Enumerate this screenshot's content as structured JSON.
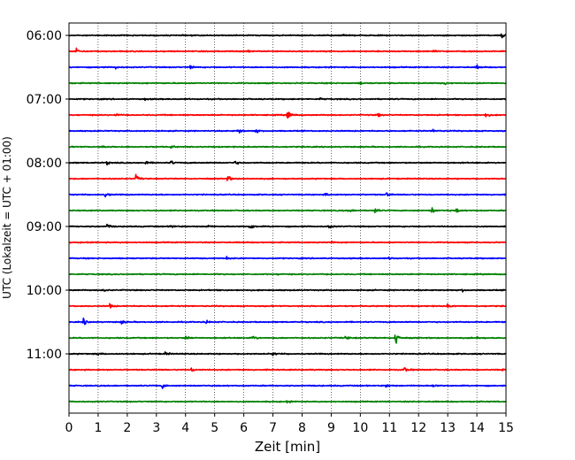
{
  "chart_data": {
    "type": "line",
    "title": "",
    "xlabel": "Zeit  [min]",
    "ylabel": "UTC (Lokalzeit = UTC + 01:00)",
    "xlim": [
      0,
      15
    ],
    "x_ticks": [
      "0",
      "1",
      "2",
      "3",
      "4",
      "5",
      "6",
      "7",
      "8",
      "9",
      "10",
      "11",
      "12",
      "13",
      "14",
      "15"
    ],
    "y_ticks": [
      "06:00",
      "07:00",
      "08:00",
      "09:00",
      "10:00",
      "11:00"
    ],
    "grid": "vertical dotted",
    "trace_interval_minutes": 15,
    "colors": [
      "#000000",
      "#ff0000",
      "#0000ff",
      "#008000"
    ],
    "series": [
      {
        "start": "06:00",
        "color": "#000000",
        "events": [
          {
            "t": 14.85,
            "amp": 0.55
          },
          {
            "t": 9.4,
            "amp": 0.2
          }
        ]
      },
      {
        "start": "06:15",
        "color": "#ff0000",
        "events": [
          {
            "t": 0.25,
            "amp": 0.55
          },
          {
            "t": 6.1,
            "amp": 0.25
          },
          {
            "t": 12.5,
            "amp": 0.25
          }
        ]
      },
      {
        "start": "06:30",
        "color": "#0000ff",
        "events": [
          {
            "t": 4.15,
            "amp": 0.35
          },
          {
            "t": 1.6,
            "amp": 0.25
          },
          {
            "t": 14.0,
            "amp": 0.35
          }
        ]
      },
      {
        "start": "06:45",
        "color": "#008000",
        "events": [
          {
            "t": 10.0,
            "amp": 0.3
          },
          {
            "t": 12.9,
            "amp": 0.25
          }
        ]
      },
      {
        "start": "07:00",
        "color": "#000000",
        "events": [
          {
            "t": 2.6,
            "amp": 0.2
          },
          {
            "t": 8.6,
            "amp": 0.2
          }
        ]
      },
      {
        "start": "07:15",
        "color": "#ff0000",
        "events": [
          {
            "t": 7.5,
            "amp": 0.9
          },
          {
            "t": 10.6,
            "amp": 0.4
          },
          {
            "t": 14.3,
            "amp": 0.45
          },
          {
            "t": 1.6,
            "amp": 0.3
          }
        ]
      },
      {
        "start": "07:30",
        "color": "#0000ff",
        "events": [
          {
            "t": 5.8,
            "amp": 0.55
          },
          {
            "t": 6.4,
            "amp": 0.45
          },
          {
            "t": 12.5,
            "amp": 0.35
          }
        ]
      },
      {
        "start": "07:45",
        "color": "#008000",
        "events": [
          {
            "t": 1.15,
            "amp": 0.35
          },
          {
            "t": 3.5,
            "amp": 0.25
          }
        ]
      },
      {
        "start": "08:00",
        "color": "#000000",
        "events": [
          {
            "t": 2.6,
            "amp": 0.35
          },
          {
            "t": 3.5,
            "amp": 0.35
          },
          {
            "t": 5.7,
            "amp": 0.35
          },
          {
            "t": 1.3,
            "amp": 0.3
          }
        ]
      },
      {
        "start": "08:15",
        "color": "#ff0000",
        "events": [
          {
            "t": 2.3,
            "amp": 0.6
          },
          {
            "t": 5.45,
            "amp": 0.5
          }
        ]
      },
      {
        "start": "08:30",
        "color": "#0000ff",
        "events": [
          {
            "t": 1.25,
            "amp": 0.45
          },
          {
            "t": 10.9,
            "amp": 0.45
          },
          {
            "t": 8.8,
            "amp": 0.3
          }
        ]
      },
      {
        "start": "08:45",
        "color": "#008000",
        "events": [
          {
            "t": 12.45,
            "amp": 0.6
          },
          {
            "t": 10.5,
            "amp": 0.45
          },
          {
            "t": 9.6,
            "amp": 0.35
          },
          {
            "t": 13.3,
            "amp": 0.35
          }
        ]
      },
      {
        "start": "09:00",
        "color": "#000000",
        "events": [
          {
            "t": 6.2,
            "amp": 0.7
          },
          {
            "t": 1.3,
            "amp": 0.5
          },
          {
            "t": 3.5,
            "amp": 0.45
          },
          {
            "t": 8.9,
            "amp": 0.45
          },
          {
            "t": 4.7,
            "amp": 0.4
          }
        ]
      },
      {
        "start": "09:15",
        "color": "#ff0000",
        "events": [
          {
            "t": 9.0,
            "amp": 0.15
          }
        ]
      },
      {
        "start": "09:30",
        "color": "#0000ff",
        "events": [
          {
            "t": 5.4,
            "amp": 0.25
          },
          {
            "t": 11.0,
            "amp": 0.2
          }
        ]
      },
      {
        "start": "09:45",
        "color": "#008000",
        "events": [
          {
            "t": 7.2,
            "amp": 0.15
          }
        ]
      },
      {
        "start": "10:00",
        "color": "#000000",
        "events": [
          {
            "t": 1.2,
            "amp": 0.25
          },
          {
            "t": 13.5,
            "amp": 0.2
          }
        ]
      },
      {
        "start": "10:15",
        "color": "#ff0000",
        "events": [
          {
            "t": 1.4,
            "amp": 0.4
          },
          {
            "t": 13.0,
            "amp": 0.3
          }
        ]
      },
      {
        "start": "10:30",
        "color": "#0000ff",
        "events": [
          {
            "t": 0.5,
            "amp": 0.55
          },
          {
            "t": 4.7,
            "amp": 0.3
          },
          {
            "t": 1.8,
            "amp": 0.3
          }
        ]
      },
      {
        "start": "10:45",
        "color": "#008000",
        "events": [
          {
            "t": 11.2,
            "amp": 1.5
          },
          {
            "t": 6.3,
            "amp": 0.5
          },
          {
            "t": 4.0,
            "amp": 0.45
          },
          {
            "t": 9.5,
            "amp": 0.4
          },
          {
            "t": 14.0,
            "amp": 0.4
          }
        ]
      },
      {
        "start": "11:00",
        "color": "#000000",
        "events": [
          {
            "t": 1.0,
            "amp": 0.3
          },
          {
            "t": 3.3,
            "amp": 0.3
          },
          {
            "t": 7.0,
            "amp": 0.3
          }
        ]
      },
      {
        "start": "11:15",
        "color": "#ff0000",
        "events": [
          {
            "t": 11.5,
            "amp": 0.5
          },
          {
            "t": 14.9,
            "amp": 0.35
          },
          {
            "t": 4.2,
            "amp": 0.3
          }
        ]
      },
      {
        "start": "11:30",
        "color": "#0000ff",
        "events": [
          {
            "t": 3.2,
            "amp": 0.4
          },
          {
            "t": 10.9,
            "amp": 0.35
          },
          {
            "t": 12.5,
            "amp": 0.3
          }
        ]
      },
      {
        "start": "11:45",
        "color": "#008000",
        "events": [
          {
            "t": 7.5,
            "amp": 0.2
          }
        ]
      }
    ]
  }
}
